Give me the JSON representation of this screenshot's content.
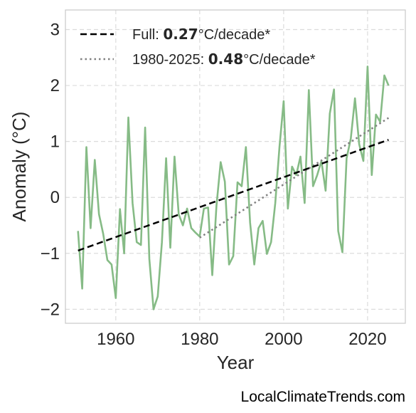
{
  "chart_data": {
    "type": "line",
    "title": "",
    "xlabel": "Year",
    "ylabel": "Anomaly (°C)",
    "xlim": [
      1948,
      2029
    ],
    "ylim": [
      -2.25,
      3.35
    ],
    "x_ticks": [
      1960,
      1980,
      2000,
      2020
    ],
    "y_ticks": [
      -2,
      -1,
      0,
      1,
      2,
      3
    ],
    "y_tick_labels": [
      "−2",
      "−1",
      "0",
      "1",
      "2",
      "3"
    ],
    "grid": true,
    "legend_position": "top-left",
    "series": [
      {
        "name": "",
        "style": "solid",
        "color": "#86bb86",
        "x": [
          1951,
          1952,
          1953,
          1954,
          1955,
          1956,
          1957,
          1958,
          1959,
          1960,
          1961,
          1962,
          1963,
          1964,
          1965,
          1966,
          1967,
          1968,
          1969,
          1970,
          1971,
          1972,
          1973,
          1974,
          1975,
          1976,
          1977,
          1978,
          1979,
          1980,
          1981,
          1982,
          1983,
          1984,
          1985,
          1986,
          1987,
          1988,
          1989,
          1990,
          1991,
          1992,
          1993,
          1994,
          1995,
          1996,
          1997,
          1998,
          1999,
          2000,
          2001,
          2002,
          2003,
          2004,
          2005,
          2006,
          2007,
          2008,
          2009,
          2010,
          2011,
          2012,
          2013,
          2014,
          2015,
          2016,
          2017,
          2018,
          2019,
          2020,
          2021,
          2022,
          2023,
          2024,
          2025
        ],
        "y": [
          -0.6,
          -1.63,
          0.9,
          -0.55,
          0.67,
          -0.3,
          -0.65,
          -1.12,
          -1.2,
          -1.8,
          -0.21,
          -1.0,
          1.43,
          -0.1,
          -0.8,
          -0.85,
          1.25,
          -1.1,
          -2.0,
          -1.77,
          -0.8,
          0.7,
          -0.9,
          0.73,
          -0.3,
          -0.5,
          -0.2,
          -0.55,
          -0.63,
          -0.7,
          -0.2,
          -0.18,
          -1.39,
          -0.15,
          0.63,
          0.28,
          -1.2,
          -1.05,
          0.27,
          0.2,
          0.9,
          -0.45,
          -1.2,
          -0.55,
          -0.42,
          -1.01,
          -0.8,
          -0.1,
          0.9,
          1.72,
          -0.2,
          0.55,
          0.4,
          0.73,
          -0.1,
          1.92,
          0.2,
          0.4,
          0.65,
          0.12,
          1.5,
          1.93,
          -0.6,
          -0.98,
          0.7,
          1.05,
          1.77,
          0.95,
          0.65,
          2.34,
          0.4,
          1.48,
          1.35,
          2.18,
          2.0
        ]
      },
      {
        "name": "Full",
        "style": "dashed",
        "color": "#000000",
        "x": [
          1951,
          2025
        ],
        "y": [
          -0.95,
          1.03
        ],
        "label_prefix": "Full: ",
        "label_value": "0.27",
        "label_suffix": "°C/decade*"
      },
      {
        "name": "1980-2025",
        "style": "dotted",
        "color": "#808080",
        "x": [
          1980,
          2025
        ],
        "y": [
          -0.72,
          1.42
        ],
        "label_prefix": "1980-2025: ",
        "label_value": "0.48",
        "label_suffix": "°C/decade*"
      }
    ]
  },
  "source": "LocalClimateTrends.com"
}
